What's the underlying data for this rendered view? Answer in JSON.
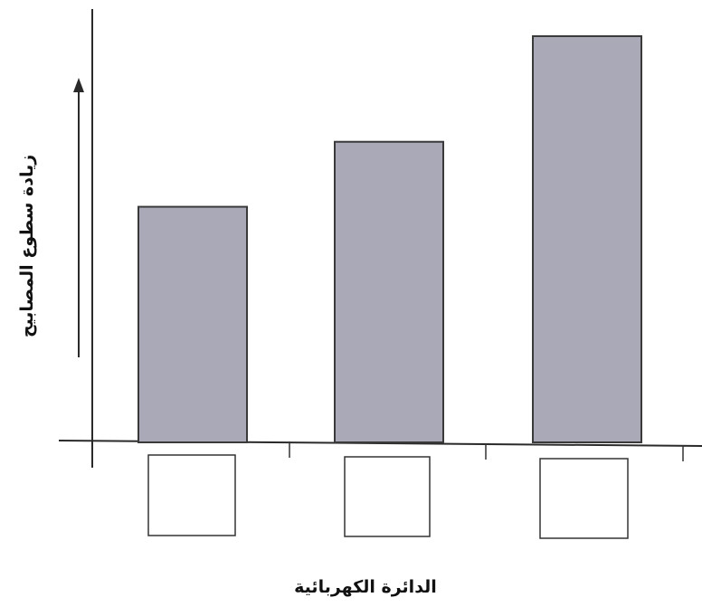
{
  "chart_data": {
    "type": "bar",
    "categories": [
      "",
      "",
      ""
    ],
    "values": [
      58,
      74,
      100
    ],
    "ylabel": "زيادة سطوع المصابيح",
    "xlabel": "الدائرة الكهربائية",
    "ylim": [
      0,
      110
    ],
    "grid": false,
    "y_axis_arrow": true,
    "colors": {
      "bar": "#a9a9b8",
      "bar_border": "#3a3a3a",
      "axis": "#2a2a2a"
    }
  }
}
